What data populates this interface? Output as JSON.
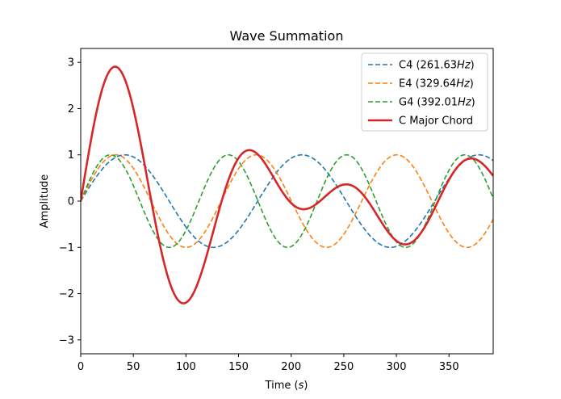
{
  "chart_data": {
    "type": "line",
    "title": "Wave Summation",
    "xlabel": "Time",
    "xlabel_unit": "s",
    "ylabel": "Amplitude",
    "xlim": [
      0,
      392
    ],
    "ylim": [
      -3.3,
      3.3
    ],
    "xticks": [
      0,
      50,
      100,
      150,
      200,
      250,
      300,
      350
    ],
    "yticks": [
      -3,
      -2,
      -1,
      0,
      1,
      2,
      3
    ],
    "grid": false,
    "legend_position": "upper-right",
    "series": [
      {
        "name": "C4",
        "freq_label": "261.63",
        "unit": "Hz",
        "amplitude": 1,
        "period": 168.2,
        "style": "dashed",
        "color": "#1f77b4"
      },
      {
        "name": "E4",
        "freq_label": "329.64",
        "unit": "Hz",
        "amplitude": 1,
        "period": 133.5,
        "style": "dashed",
        "color": "#ff7f0e"
      },
      {
        "name": "G4",
        "freq_label": "392.01",
        "unit": "Hz",
        "amplitude": 1,
        "period": 112.3,
        "style": "dashed",
        "color": "#2ca02c"
      },
      {
        "name": "C Major Chord",
        "style": "solid",
        "color": "#d62728",
        "sum_of": [
          "C4",
          "E4",
          "G4"
        ]
      }
    ]
  }
}
